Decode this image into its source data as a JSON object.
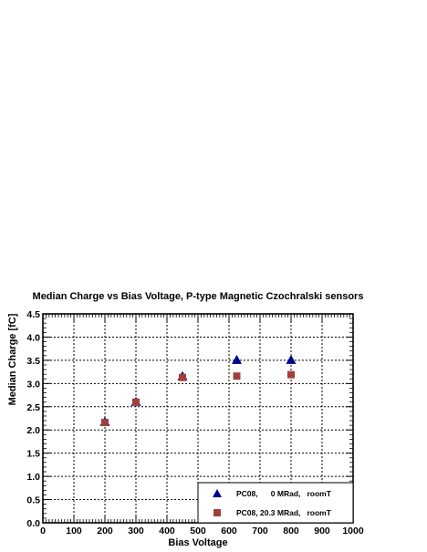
{
  "chart_data": {
    "type": "scatter",
    "title": "Median Charge vs Bias Voltage, P-type Magnetic Czochralski sensors",
    "xlabel": "Bias Voltage",
    "ylabel": "Median Charge [fC]",
    "xlim": [
      0,
      1000
    ],
    "ylim": [
      0,
      4.5
    ],
    "x_ticks": [
      "0",
      "100",
      "200",
      "300",
      "400",
      "500",
      "600",
      "700",
      "800",
      "900",
      "1000"
    ],
    "y_ticks": [
      "0.0",
      "0.5",
      "1.0",
      "1.5",
      "2.0",
      "2.5",
      "3.0",
      "3.5",
      "4.0",
      "4.5"
    ],
    "grid": true,
    "legend_position": "bottom-right",
    "series": [
      {
        "name": "PC08,      0 MRad,   roomT",
        "marker": "triangle",
        "color": "#00008b",
        "points": [
          {
            "x": 200,
            "y": 2.17
          },
          {
            "x": 300,
            "y": 2.6
          },
          {
            "x": 450,
            "y": 3.15
          },
          {
            "x": 625,
            "y": 3.5
          },
          {
            "x": 800,
            "y": 3.5
          }
        ]
      },
      {
        "name": "PC08, 20.3 MRad,   roomT",
        "marker": "square",
        "color": "#a0403c",
        "points": [
          {
            "x": 200,
            "y": 2.16
          },
          {
            "x": 300,
            "y": 2.6
          },
          {
            "x": 450,
            "y": 3.13
          },
          {
            "x": 625,
            "y": 3.16
          },
          {
            "x": 800,
            "y": 3.19
          }
        ]
      }
    ]
  }
}
